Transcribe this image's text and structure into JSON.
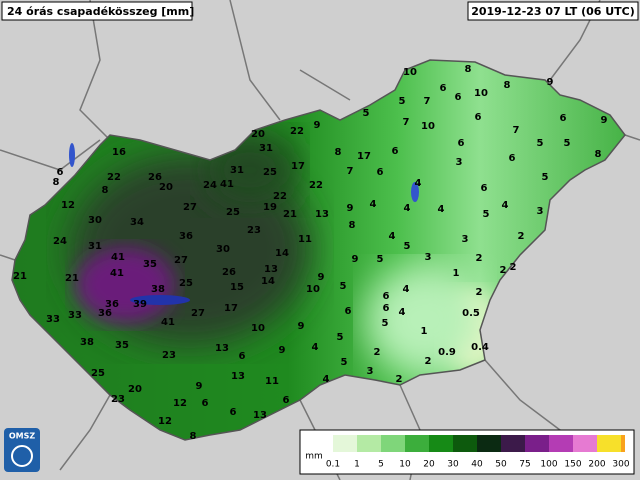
{
  "header": {
    "title": "24 órás csapadékösszeg [mm]",
    "timestamp": "2019-12-23 07 LT (06 UTC)"
  },
  "logo": "OMSZ",
  "stations": [
    "10",
    "8",
    "8",
    "9",
    "6",
    "10",
    "5",
    "7",
    "6",
    "5",
    "7",
    "10",
    "6",
    "6",
    "9",
    "7",
    "5",
    "5",
    "8",
    "9",
    "22",
    "20",
    "31",
    "8",
    "17",
    "6",
    "6",
    "17",
    "31",
    "25",
    "6",
    "3",
    "7",
    "6",
    "5",
    "41",
    "24",
    "22",
    "6",
    "4",
    "22",
    "19",
    "21",
    "25",
    "9",
    "4",
    "4",
    "4",
    "4",
    "3",
    "13",
    "5",
    "8",
    "23",
    "4",
    "5",
    "3",
    "2",
    "11",
    "30",
    "14",
    "9",
    "5",
    "3",
    "2",
    "2",
    "2",
    "26",
    "13",
    "9",
    "1",
    "15",
    "14",
    "10",
    "5",
    "4",
    "2",
    "6",
    "6",
    "6",
    "4",
    "17",
    "0.5",
    "10",
    "9",
    "1",
    "5",
    "13",
    "6",
    "9",
    "4",
    "5",
    "2",
    "0.4",
    "0.9",
    "2",
    "5",
    "3",
    "4",
    "2",
    "13",
    "11",
    "9",
    "6",
    "12",
    "6",
    "6",
    "13",
    "12",
    "8",
    "6",
    "8",
    "16",
    "22",
    "8",
    "26",
    "20",
    "12",
    "27",
    "30",
    "34",
    "36",
    "24",
    "31",
    "21",
    "21",
    "41",
    "35",
    "27",
    "41",
    "25",
    "38",
    "36",
    "39",
    "36",
    "33",
    "33",
    "41",
    "27",
    "38",
    "35",
    "23",
    "25",
    "20",
    "23"
  ],
  "legend": {
    "unit": "mm",
    "labels": [
      "0.1",
      "1",
      "5",
      "10",
      "20",
      "30",
      "40",
      "50",
      "75",
      "100",
      "150",
      "200",
      "300"
    ]
  }
}
